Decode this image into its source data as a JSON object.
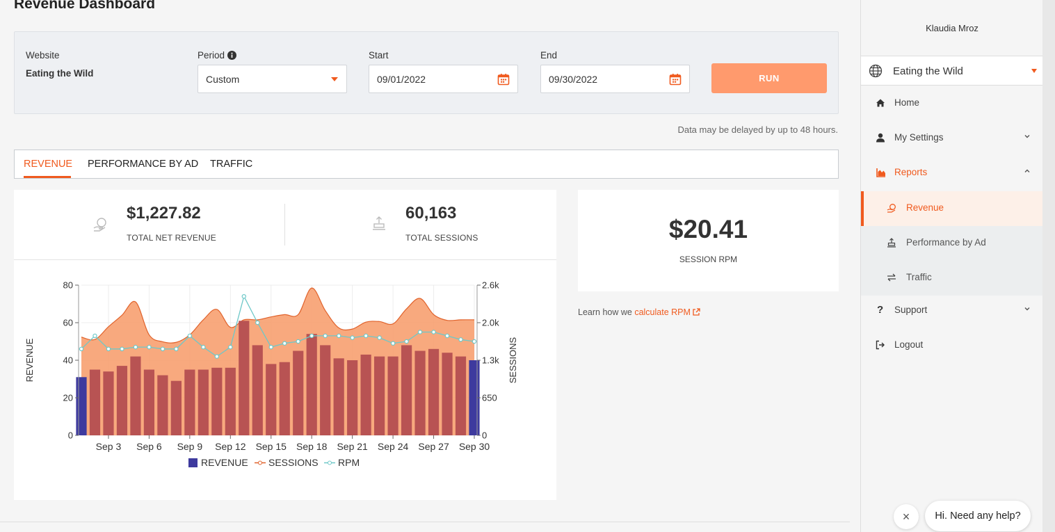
{
  "page": {
    "title": "Revenue Dashboard"
  },
  "filters": {
    "website_label": "Website",
    "website_value": "Eating the Wild",
    "period_label": "Period",
    "period_value": "Custom",
    "start_label": "Start",
    "start_value": "09/01/2022",
    "end_label": "End",
    "end_value": "09/30/2022",
    "run_label": "RUN"
  },
  "notice": "Data may be delayed by up to 48 hours.",
  "tabs": [
    {
      "label": "REVENUE",
      "active": true
    },
    {
      "label": "PERFORMANCE BY AD",
      "active": false
    },
    {
      "label": "TRAFFIC",
      "active": false
    }
  ],
  "kpis": {
    "revenue_value": "$1,227.82",
    "revenue_label": "TOTAL NET REVENUE",
    "sessions_value": "60,163",
    "sessions_label": "TOTAL SESSIONS",
    "rpm_value": "$20.41",
    "rpm_label": "SESSION RPM"
  },
  "learn": {
    "prefix": "Learn how we ",
    "link": "calculate RPM"
  },
  "sidebar": {
    "user": "Klaudia Mroz",
    "site": "Eating the Wild",
    "items": [
      {
        "label": "Home",
        "icon": "home-icon"
      },
      {
        "label": "My Settings",
        "icon": "user-icon"
      },
      {
        "label": "Reports",
        "icon": "chart-area-icon"
      },
      {
        "label": "Revenue",
        "icon": "coins-icon"
      },
      {
        "label": "Performance by Ad",
        "icon": "ad-upload-icon"
      },
      {
        "label": "Traffic",
        "icon": "exchange-icon"
      },
      {
        "label": "Support",
        "icon": "question-icon"
      },
      {
        "label": "Logout",
        "icon": "logout-icon"
      }
    ]
  },
  "chat": {
    "close_glyph": "×",
    "message": "Hi. Need any help?"
  },
  "colors": {
    "accent": "#f05a1e",
    "revenue_bar": "#b85353",
    "revenue_legend": "#3e3a9e",
    "sessions_area": "#f7a070",
    "rpm_line": "#6ec8c8"
  },
  "chart_data": {
    "type": "bar",
    "x": [
      "Sep 1",
      "Sep 2",
      "Sep 3",
      "Sep 4",
      "Sep 5",
      "Sep 6",
      "Sep 7",
      "Sep 8",
      "Sep 9",
      "Sep 10",
      "Sep 11",
      "Sep 12",
      "Sep 13",
      "Sep 14",
      "Sep 15",
      "Sep 16",
      "Sep 17",
      "Sep 18",
      "Sep 19",
      "Sep 20",
      "Sep 21",
      "Sep 22",
      "Sep 23",
      "Sep 24",
      "Sep 25",
      "Sep 26",
      "Sep 27",
      "Sep 28",
      "Sep 29",
      "Sep 30"
    ],
    "xticks": [
      "Sep 3",
      "Sep 6",
      "Sep 9",
      "Sep 12",
      "Sep 15",
      "Sep 18",
      "Sep 21",
      "Sep 24",
      "Sep 27",
      "Sep 30"
    ],
    "series": [
      {
        "name": "REVENUE",
        "axis": "left",
        "kind": "bar",
        "values": [
          31,
          35,
          34,
          37,
          42,
          35,
          32,
          29,
          35,
          35,
          36,
          36,
          61,
          48,
          38,
          39,
          45,
          54,
          48,
          41,
          40,
          43,
          42,
          42,
          48,
          45,
          46,
          44,
          42,
          40
        ]
      },
      {
        "name": "SESSIONS",
        "axis": "right",
        "kind": "area",
        "values": [
          1700,
          1660,
          1880,
          2080,
          2310,
          1740,
          1620,
          1610,
          1740,
          2000,
          2180,
          1870,
          2000,
          2000,
          2050,
          2090,
          2090,
          2550,
          2160,
          1860,
          1840,
          1960,
          1970,
          1930,
          2190,
          2370,
          2090,
          1990,
          2000,
          2000
        ]
      },
      {
        "name": "RPM",
        "axis": "left",
        "kind": "line",
        "values": [
          46,
          53,
          46,
          46,
          47,
          47,
          46,
          46,
          53,
          47,
          42,
          47,
          74,
          60,
          47,
          49,
          50,
          53,
          53,
          53,
          52,
          53,
          52,
          49,
          50,
          55,
          55,
          53,
          51,
          50
        ]
      }
    ],
    "ylabel_left": "REVENUE",
    "ylabel_right": "SESSIONS",
    "ylim_left": [
      0,
      80
    ],
    "yticks_left": [
      "0",
      "20",
      "40",
      "60",
      "80"
    ],
    "ylim_right": [
      0,
      2600
    ],
    "yticks_right": [
      "0",
      "650",
      "1.3k",
      "2.0k",
      "2.6k"
    ],
    "legend": [
      "REVENUE",
      "SESSIONS",
      "RPM"
    ],
    "legend_position": "bottom",
    "grid": true
  }
}
